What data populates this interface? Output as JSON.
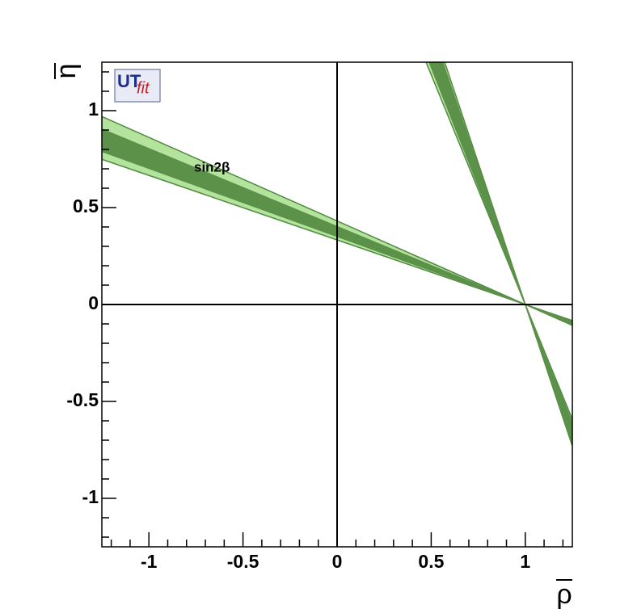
{
  "chart_data": {
    "type": "wedge",
    "xlabel": "ρ",
    "ylabel": "η",
    "annotation": "sin2β",
    "logo": {
      "main": "UT",
      "sub": "fit"
    },
    "xlim": [
      -1.25,
      1.25
    ],
    "ylim": [
      -1.25,
      1.25
    ],
    "xticks": [
      -1,
      -0.5,
      0,
      0.5,
      1
    ],
    "yticks": [
      -1,
      -0.5,
      0,
      0.5,
      1
    ],
    "xminorticks": [
      -1.2,
      -1.1,
      -0.9,
      -0.8,
      -0.7,
      -0.6,
      -0.4,
      -0.3,
      -0.2,
      -0.1,
      0.1,
      0.2,
      0.3,
      0.4,
      0.6,
      0.7,
      0.8,
      0.9,
      1.1,
      1.2
    ],
    "yminorticks": [
      -1.2,
      -1.1,
      -0.9,
      -0.8,
      -0.7,
      -0.6,
      -0.4,
      -0.3,
      -0.2,
      -0.1,
      0.1,
      0.2,
      0.3,
      0.4,
      0.6,
      0.7,
      0.8,
      0.9,
      1.1,
      1.2
    ],
    "axis_lines": true,
    "bands": [
      {
        "apex": [
          1,
          0
        ],
        "slopes": [
          -0.431,
          -0.333
        ],
        "color": "#b3e39c",
        "edge": "#4f8a3f"
      },
      {
        "apex": [
          1,
          0
        ],
        "slopes": [
          -0.402,
          -0.351
        ],
        "color": "#5b9149",
        "edge": "#5b9149"
      },
      {
        "apex": [
          1,
          0
        ],
        "slopes": [
          -2.37,
          -2.92
        ],
        "color": "#b3e39c",
        "edge": "#4f8a3f"
      },
      {
        "apex": [
          1,
          0
        ],
        "slopes": [
          -2.45,
          -2.85
        ],
        "color": "#5b9149",
        "edge": "#5b9149"
      }
    ]
  }
}
